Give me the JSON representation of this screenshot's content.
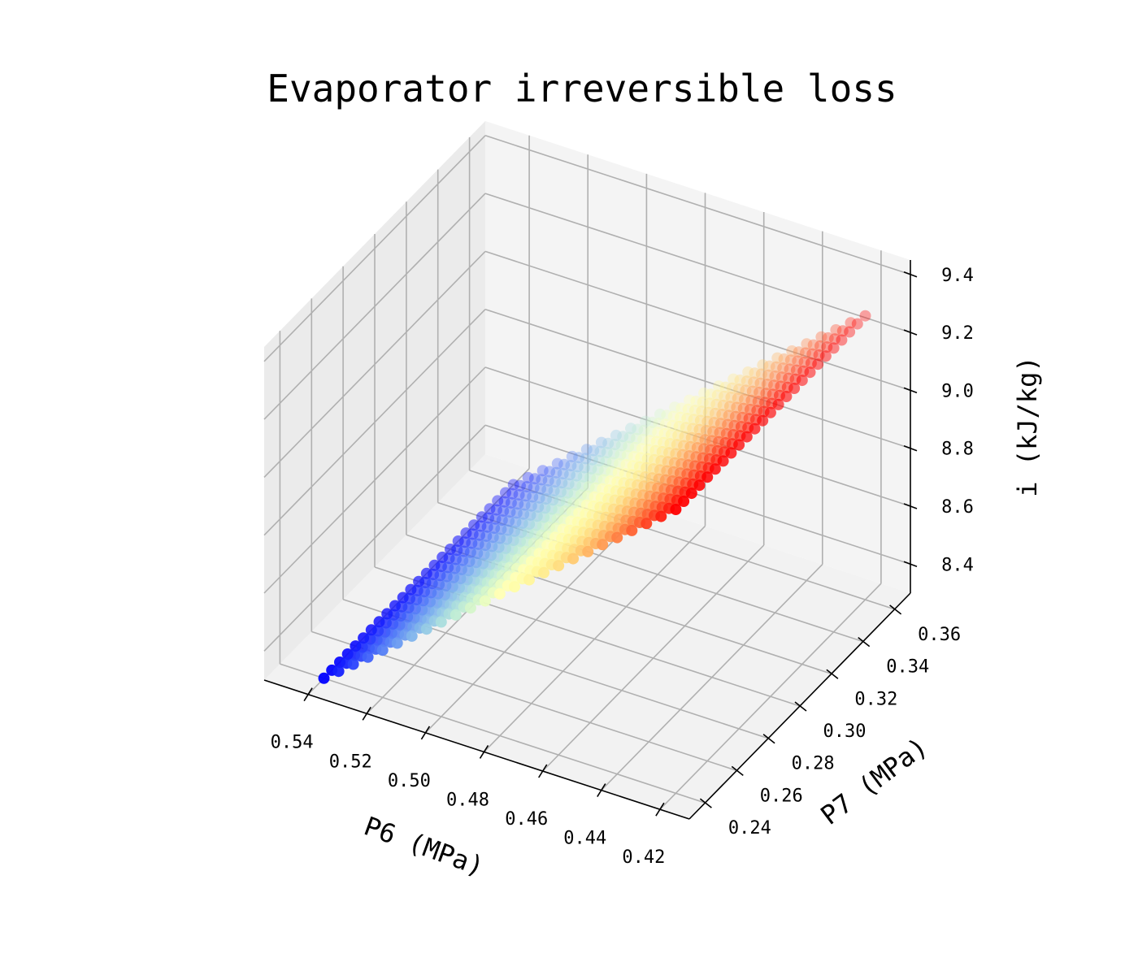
{
  "chart_data": {
    "type": "scatter",
    "title": "Evaporator irreversible loss",
    "xlabel": "P6 (MPa)",
    "ylabel": "P7 (MPa)",
    "zlabel": "i (kJ/kg)",
    "x_ticks": [
      "0.42",
      "0.44",
      "0.46",
      "0.48",
      "0.50",
      "0.52",
      "0.54"
    ],
    "y_ticks": [
      "0.24",
      "0.26",
      "0.28",
      "0.30",
      "0.32",
      "0.34",
      "0.36"
    ],
    "z_ticks": [
      "8.4",
      "8.6",
      "8.8",
      "9.0",
      "9.2",
      "9.4"
    ],
    "xlim": [
      0.41,
      0.555
    ],
    "ylim": [
      0.23,
      0.37
    ],
    "zlim": [
      8.3,
      9.45
    ],
    "grid": true,
    "colormap": "rainbow",
    "surface": {
      "x_range": [
        0.42,
        0.54
      ],
      "y_range": [
        0.24,
        0.36
      ],
      "x_count": 25,
      "y_count": 25,
      "z_at_x_min": 9.28,
      "z_at_x_max": 8.3
    }
  }
}
